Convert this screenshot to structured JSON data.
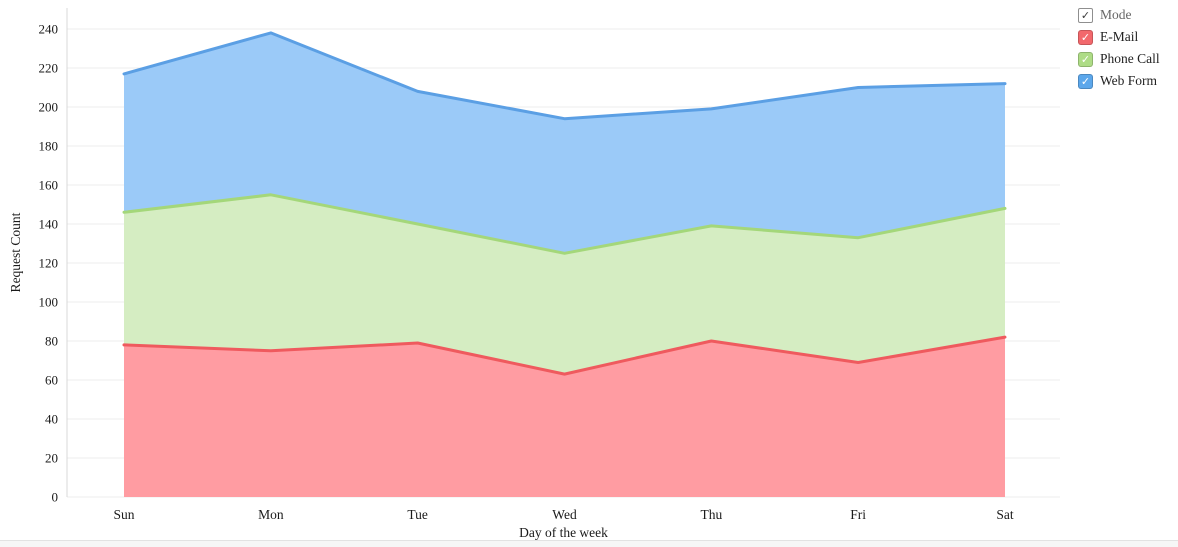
{
  "chart_data": {
    "type": "area",
    "stacked": true,
    "title": "",
    "xlabel": "Day of the week",
    "ylabel": "Request Count",
    "categories": [
      "Sun",
      "Mon",
      "Tue",
      "Wed",
      "Thu",
      "Fri",
      "Sat"
    ],
    "series": [
      {
        "name": "E-Mail",
        "values": [
          78,
          75,
          79,
          63,
          80,
          69,
          82
        ],
        "fill": "#FF9CA2",
        "line": "#EF5A5E",
        "legend_color": "#F2686C"
      },
      {
        "name": "Phone Call",
        "values": [
          68,
          80,
          61,
          62,
          59,
          64,
          66
        ],
        "fill": "#D5EDC2",
        "line": "#A4D77A",
        "legend_color": "#AEDC86"
      },
      {
        "name": "Web Form",
        "values": [
          71,
          83,
          68,
          69,
          60,
          77,
          64
        ],
        "fill": "#9BCAF8",
        "line": "#5B9FE4",
        "legend_color": "#5CA7EB"
      }
    ],
    "ylim": [
      0,
      250
    ],
    "yticks": [
      0,
      20,
      40,
      60,
      80,
      100,
      120,
      140,
      160,
      180,
      200,
      220,
      240
    ],
    "grid": true,
    "legend_position": "top-right"
  },
  "legend": {
    "mode_label": "Mode",
    "mode_checked": true,
    "check_glyph": "✓"
  },
  "colors": {
    "gridline": "#ececec",
    "axis_line": "#d9d9d9",
    "tick_text": "#1a1a1a"
  }
}
